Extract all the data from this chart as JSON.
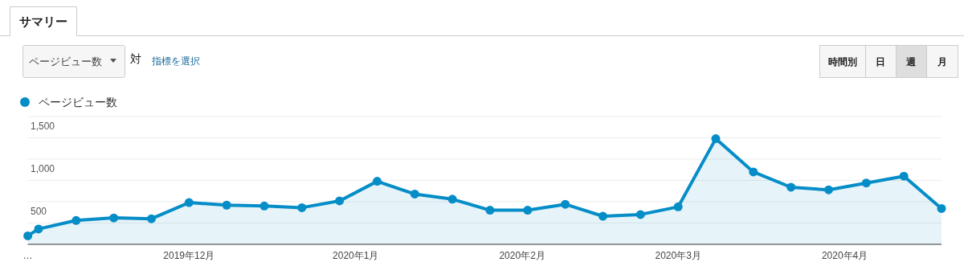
{
  "chart_data": {
    "type": "area",
    "title": "サマリー",
    "annotations": [
      "ページビュー数",
      "対",
      "指標を選択",
      "時間別",
      "日",
      "週",
      "月"
    ],
    "x": [
      "2019-11-01",
      "2019-11-03",
      "2019-11-10",
      "2019-11-17",
      "2019-11-24",
      "2019-12-01",
      "2019-12-08",
      "2019-12-15",
      "2019-12-22",
      "2019-12-29",
      "2020-01-05",
      "2020-01-12",
      "2020-01-19",
      "2020-01-26",
      "2020-02-02",
      "2020-02-09",
      "2020-02-16",
      "2020-02-23",
      "2020-03-01",
      "2020-03-08",
      "2020-03-15",
      "2020-03-22",
      "2020-03-29",
      "2020-04-05",
      "2020-04-12",
      "2020-04-19"
    ],
    "series": [
      {
        "name": "ページビュー数",
        "color": "#058dc7",
        "values": [
          100,
          180,
          280,
          310,
          300,
          490,
          460,
          450,
          430,
          510,
          740,
          590,
          530,
          400,
          400,
          470,
          330,
          350,
          440,
          1240,
          850,
          670,
          640,
          720,
          800,
          420
        ]
      }
    ],
    "xlim": [
      "2019-11-01",
      "2020-04-19"
    ],
    "xticks": [
      {
        "value": "2019-11-01",
        "label": "…"
      },
      {
        "value": "2019-12-01",
        "label": "2019年12月"
      },
      {
        "value": "2020-01-01",
        "label": "2020年1月"
      },
      {
        "value": "2020-02-01",
        "label": "2020年2月"
      },
      {
        "value": "2020-03-01",
        "label": "2020年3月"
      },
      {
        "value": "2020-04-01",
        "label": "2020年4月"
      }
    ],
    "ylim": [
      0,
      1500
    ],
    "yticks": [
      {
        "value": 250,
        "label": null
      },
      {
        "value": 500,
        "label": "500"
      },
      {
        "value": 750,
        "label": null
      },
      {
        "value": 1000,
        "label": "1,000"
      },
      {
        "value": 1250,
        "label": null
      },
      {
        "value": 1500,
        "label": "1,500"
      }
    ],
    "grid": "y",
    "legend": "top left",
    "marker": "circle"
  }
}
